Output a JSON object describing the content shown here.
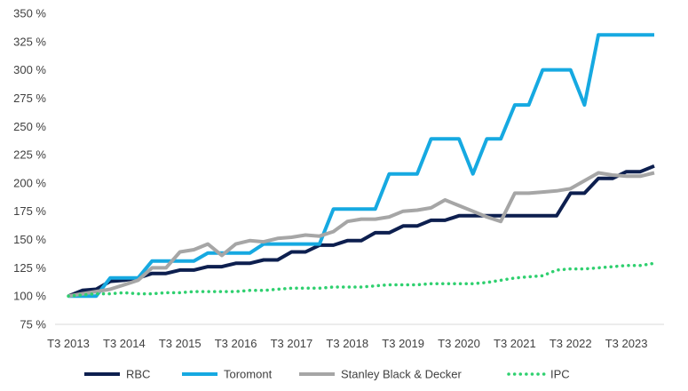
{
  "chart_data": {
    "type": "line",
    "title": "",
    "xlabel": "",
    "ylabel": "",
    "ylim": [
      75,
      350
    ],
    "y_ticks": [
      "75 %",
      "100 %",
      "125 %",
      "150 %",
      "175 %",
      "200 %",
      "225 %",
      "250 %",
      "275 %",
      "300 %",
      "325 %",
      "350 %"
    ],
    "x_tick_labels": [
      "T3 2013",
      "T3 2014",
      "T3 2015",
      "T3 2016",
      "T3 2017",
      "T3 2018",
      "T3 2019",
      "T3 2020",
      "T3 2021",
      "T3 2022",
      "T3 2023"
    ],
    "grid": false,
    "legend_position": "bottom",
    "series": [
      {
        "name": "RBC",
        "color": "#0d1f4f",
        "style": "solid",
        "values": [
          100,
          105,
          106,
          113,
          114,
          116,
          120,
          120,
          123,
          123,
          126,
          126,
          129,
          129,
          132,
          132,
          139,
          139,
          145,
          145,
          149,
          149,
          156,
          156,
          162,
          162,
          167,
          167,
          171,
          171,
          171,
          171,
          171,
          171,
          171,
          171,
          191,
          191,
          204,
          204,
          210,
          210,
          215
        ]
      },
      {
        "name": "Toromont",
        "color": "#16a9e1",
        "style": "solid",
        "values": [
          100,
          100,
          100,
          116,
          116,
          116,
          131,
          131,
          131,
          131,
          138,
          138,
          138,
          138,
          146,
          146,
          146,
          146,
          146,
          177,
          177,
          177,
          177,
          208,
          208,
          208,
          239,
          239,
          239,
          208,
          239,
          239,
          269,
          269,
          300,
          300,
          300,
          269,
          331,
          331,
          331,
          331,
          331
        ]
      },
      {
        "name": "Stanley Black & Decker",
        "color": "#a6a6a6",
        "style": "solid",
        "values": [
          100,
          102,
          104,
          106,
          110,
          114,
          125,
          125,
          139,
          141,
          146,
          136,
          146,
          149,
          148,
          151,
          152,
          154,
          153,
          157,
          166,
          168,
          168,
          170,
          175,
          176,
          178,
          185,
          180,
          175,
          170,
          166,
          191,
          191,
          192,
          193,
          195,
          202,
          209,
          207,
          206,
          206,
          209
        ]
      },
      {
        "name": "IPC",
        "color": "#2fd06f",
        "style": "dotted",
        "values": [
          100,
          101,
          102,
          102,
          103,
          102,
          102,
          103,
          103,
          104,
          104,
          104,
          104,
          105,
          105,
          106,
          107,
          107,
          107,
          108,
          108,
          108,
          109,
          110,
          110,
          110,
          111,
          111,
          111,
          111,
          112,
          114,
          116,
          117,
          118,
          123,
          124,
          124,
          125,
          126,
          127,
          127,
          129
        ]
      }
    ]
  }
}
